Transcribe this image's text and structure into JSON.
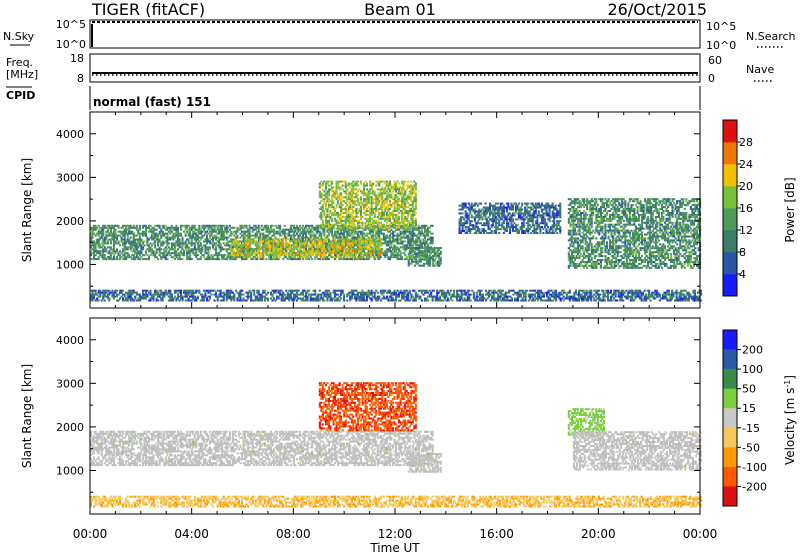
{
  "header": {
    "title": "TIGER (fitACF)",
    "beam": "Beam 01",
    "date": "26/Oct/2015"
  },
  "noise_panel": {
    "label": "N.Sky",
    "left_ticks": [
      "10^5",
      "10^0"
    ],
    "right_ticks": [
      "10^5",
      "10^0"
    ],
    "right_label": "N.Search"
  },
  "freq_panel": {
    "label_line1": "Freq.",
    "label_line2": "[MHz]",
    "left_ticks": [
      "18",
      "8"
    ],
    "right_ticks": [
      "60",
      "0"
    ],
    "right_label": "Nave"
  },
  "cpid_panel": {
    "label": "CPID",
    "value": "normal (fast) 151"
  },
  "x_axis": {
    "label": "Time UT",
    "ticks": [
      "00:00",
      "04:00",
      "08:00",
      "12:00",
      "16:00",
      "20:00",
      "00:00"
    ],
    "range_hours": [
      0,
      24
    ]
  },
  "colors": {
    "power": [
      "#1a1aff",
      "#2a56a8",
      "#3b7d6a",
      "#4f9a58",
      "#78c23a",
      "#f2c000",
      "#f07800",
      "#e01010"
    ],
    "velocity": [
      "#e01010",
      "#ff5a00",
      "#ff9a00",
      "#f4c85a",
      "#c8c8c8",
      "#7acf3a",
      "#3b8a4a",
      "#2a5aa8",
      "#1a1aff"
    ],
    "ground_scatter": "#bfbfbf"
  },
  "chart_data": [
    {
      "type": "heatmap",
      "title": "Power",
      "xlabel": "Time UT",
      "ylabel": "Slant Range [km]",
      "xlim": [
        0,
        24
      ],
      "ylim": [
        0,
        4500
      ],
      "y_ticks": [
        1000,
        2000,
        3000,
        4000
      ],
      "colorbar": {
        "label": "Power [dB]",
        "ticks": [
          4,
          8,
          12,
          16,
          20,
          24,
          28
        ],
        "range": [
          0,
          32
        ]
      },
      "features": [
        {
          "t0": 0.0,
          "t1": 13.5,
          "r0": 1100,
          "r1": 1900,
          "level": 12
        },
        {
          "t0": 5.5,
          "t1": 11.5,
          "r0": 1150,
          "r1": 1600,
          "level": 20
        },
        {
          "t0": 9.0,
          "t1": 12.8,
          "r0": 1800,
          "r1": 2900,
          "level": 18
        },
        {
          "t0": 12.5,
          "t1": 13.8,
          "r0": 950,
          "r1": 1400,
          "level": 12
        },
        {
          "t0": 14.5,
          "t1": 18.5,
          "r0": 1700,
          "r1": 2400,
          "level": 8
        },
        {
          "t0": 18.8,
          "t1": 24.0,
          "r0": 900,
          "r1": 2500,
          "level": 12
        },
        {
          "t0": 0.0,
          "t1": 24.0,
          "r0": 150,
          "r1": 400,
          "level": 8
        }
      ]
    },
    {
      "type": "heatmap",
      "title": "Velocity",
      "xlabel": "Time UT",
      "ylabel": "Slant Range [km]",
      "xlim": [
        0,
        24
      ],
      "ylim": [
        0,
        4500
      ],
      "y_ticks": [
        1000,
        2000,
        3000,
        4000
      ],
      "colorbar": {
        "label": "Velocity [m s^-1]",
        "ticks": [
          200,
          100,
          50,
          15,
          -15,
          -50,
          -100,
          -200
        ]
      },
      "features": [
        {
          "t0": 0.0,
          "t1": 13.5,
          "r0": 1100,
          "r1": 1900,
          "level": "ground"
        },
        {
          "t0": 9.0,
          "t1": 12.8,
          "r0": 1900,
          "r1": 3000,
          "level": -200
        },
        {
          "t0": 12.5,
          "t1": 13.8,
          "r0": 950,
          "r1": 1400,
          "level": "ground"
        },
        {
          "t0": 18.8,
          "t1": 20.2,
          "r0": 1800,
          "r1": 2400,
          "level": 20
        },
        {
          "t0": 19.0,
          "t1": 24.0,
          "r0": 1000,
          "r1": 1900,
          "level": "ground"
        },
        {
          "t0": 0.0,
          "t1": 24.0,
          "r0": 150,
          "r1": 400,
          "level": -50
        }
      ]
    }
  ]
}
